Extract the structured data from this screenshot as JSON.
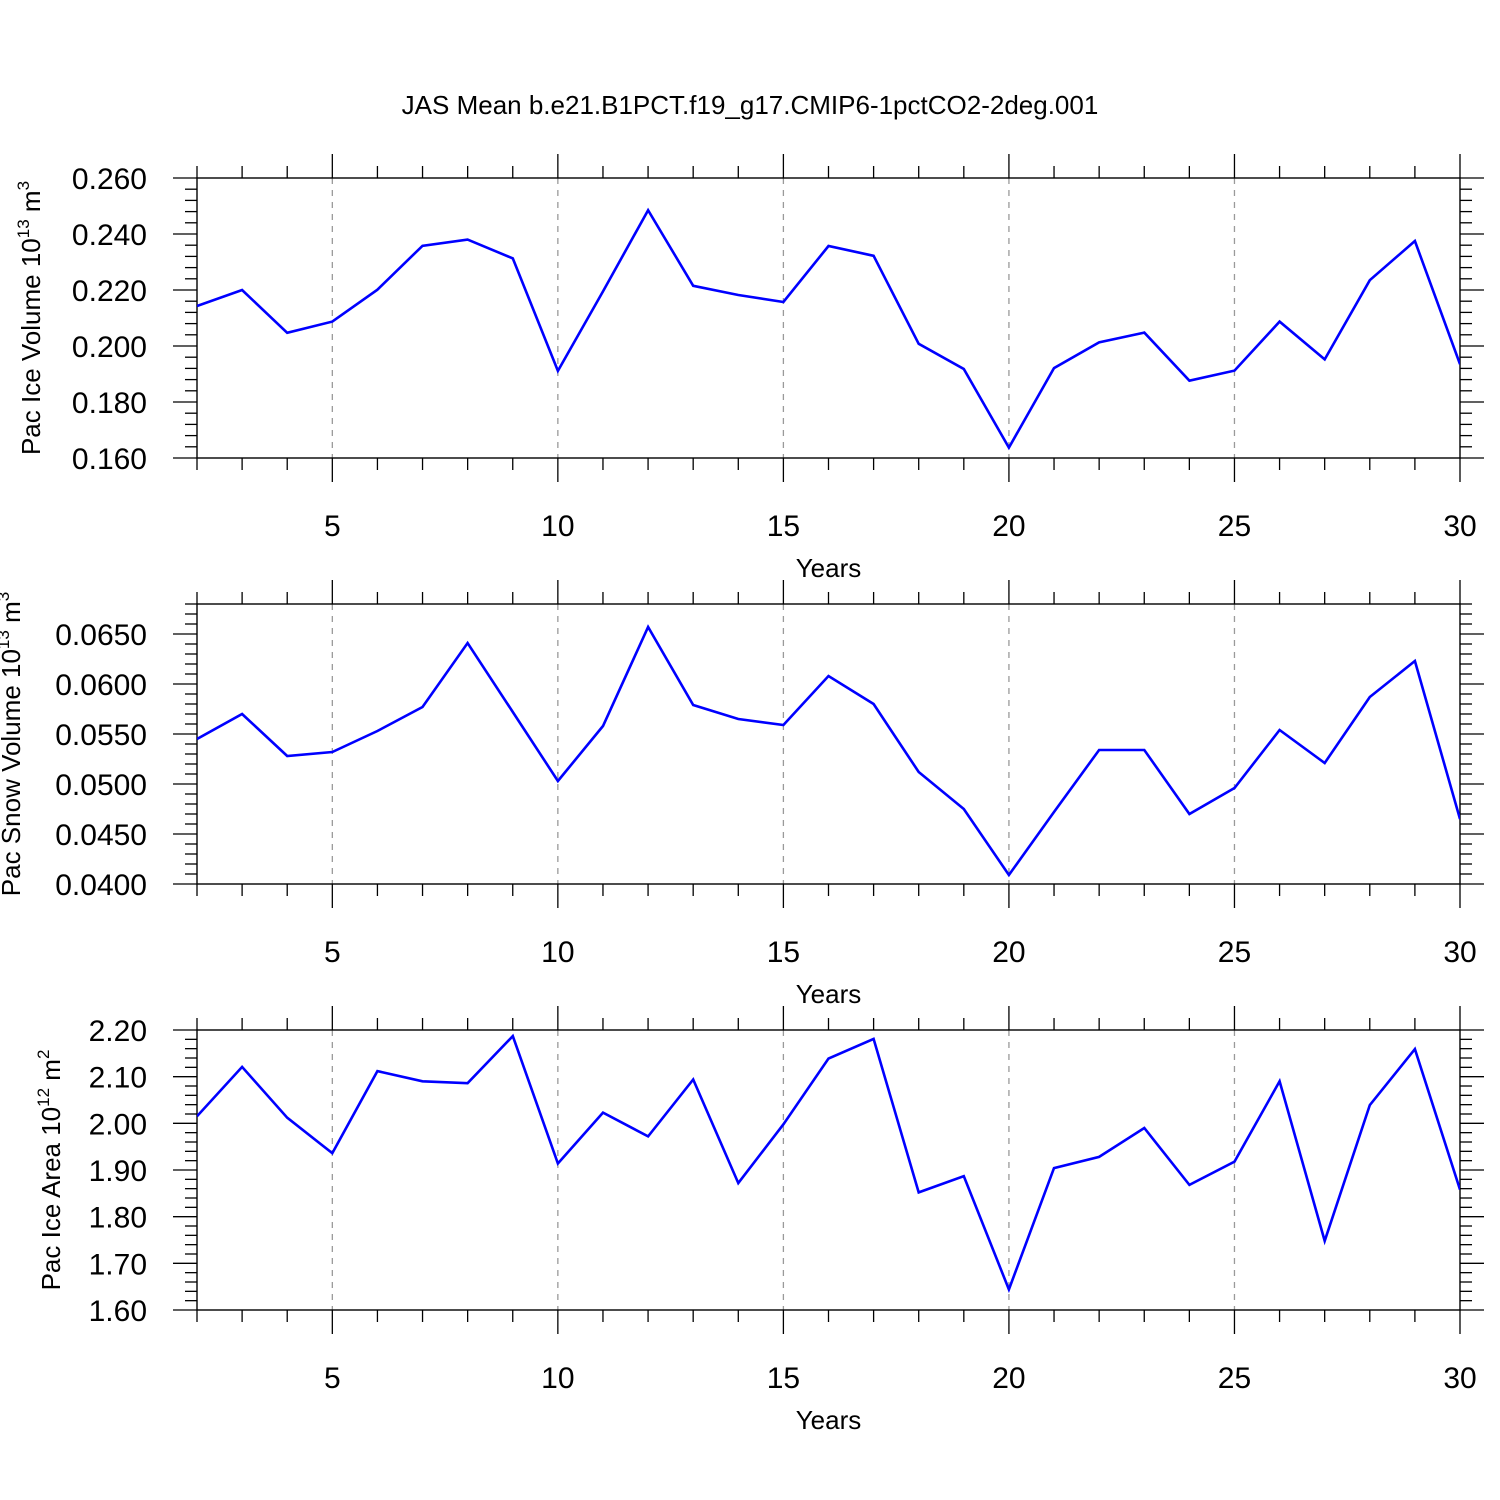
{
  "title": "JAS Mean b.e21.B1PCT.f19_g17.CMIP6-1pctCO2-2deg.001",
  "colors": {
    "line": "#0000ff",
    "axes": "#000000",
    "grid": "#9a9a9a"
  },
  "chart_data": [
    {
      "type": "line",
      "ylabel": {
        "base": "Pac Ice Volume 10",
        "exp": "13",
        "unit": " m",
        "unit_exp": "3"
      },
      "xlabel": "Years",
      "xlim": [
        2,
        30
      ],
      "ylim": [
        0.16,
        0.26
      ],
      "x_ticks": [
        5,
        10,
        15,
        20,
        25,
        30
      ],
      "y_ticks": [
        "0.160",
        "0.180",
        "0.200",
        "0.220",
        "0.240",
        "0.260"
      ],
      "grid": "vertical dashed at major x ticks",
      "x": [
        2,
        3,
        4,
        5,
        6,
        7,
        8,
        9,
        10,
        11,
        12,
        13,
        14,
        15,
        16,
        17,
        18,
        19,
        20,
        21,
        22,
        23,
        24,
        25,
        26,
        27,
        28,
        29,
        30
      ],
      "values": [
        0.2143,
        0.22,
        0.2047,
        0.2087,
        0.2201,
        0.2358,
        0.238,
        0.2313,
        0.1911,
        0.2195,
        0.2485,
        0.2215,
        0.2182,
        0.2157,
        0.2357,
        0.2322,
        0.2008,
        0.1918,
        0.1637,
        0.1921,
        0.2013,
        0.2048,
        0.1876,
        0.1912,
        0.2087,
        0.1952,
        0.2235,
        0.2375,
        0.1935
      ]
    },
    {
      "type": "line",
      "ylabel": {
        "base": "Pac Snow Volume 10",
        "exp": "13",
        "unit": " m",
        "unit_exp": "3"
      },
      "xlabel": "Years",
      "xlim": [
        2,
        30
      ],
      "ylim": [
        0.04,
        0.068
      ],
      "x_ticks": [
        5,
        10,
        15,
        20,
        25,
        30
      ],
      "y_ticks": [
        "0.0400",
        "0.0450",
        "0.0500",
        "0.0550",
        "0.0600",
        "0.0650"
      ],
      "grid": "vertical dashed at major x ticks",
      "x": [
        2,
        3,
        4,
        5,
        6,
        7,
        8,
        9,
        10,
        11,
        12,
        13,
        14,
        15,
        16,
        17,
        18,
        19,
        20,
        21,
        22,
        23,
        24,
        25,
        26,
        27,
        28,
        29,
        30
      ],
      "values": [
        0.0545,
        0.057,
        0.0528,
        0.0532,
        0.0553,
        0.0577,
        0.0641,
        0.0572,
        0.0503,
        0.0558,
        0.0657,
        0.0579,
        0.0565,
        0.0559,
        0.0608,
        0.058,
        0.0512,
        0.0475,
        0.0409,
        0.0472,
        0.0534,
        0.0534,
        0.047,
        0.0496,
        0.0554,
        0.0521,
        0.0587,
        0.0623,
        0.0465
      ]
    },
    {
      "type": "line",
      "ylabel": {
        "base": "Pac Ice Area 10",
        "exp": "12",
        "unit": " m",
        "unit_exp": "2"
      },
      "xlabel": "Years",
      "xlim": [
        2,
        30
      ],
      "ylim": [
        1.6,
        2.2
      ],
      "x_ticks": [
        5,
        10,
        15,
        20,
        25,
        30
      ],
      "y_ticks": [
        "1.60",
        "1.70",
        "1.80",
        "1.90",
        "2.00",
        "2.10",
        "2.20"
      ],
      "grid": "vertical dashed at major x ticks",
      "x": [
        2,
        3,
        4,
        5,
        6,
        7,
        8,
        9,
        10,
        11,
        12,
        13,
        14,
        15,
        16,
        17,
        18,
        19,
        20,
        21,
        22,
        23,
        24,
        25,
        26,
        27,
        28,
        29,
        30
      ],
      "values": [
        2.015,
        2.121,
        2.012,
        1.936,
        2.112,
        2.09,
        2.086,
        2.187,
        1.914,
        2.023,
        1.972,
        2.094,
        1.872,
        1.998,
        2.139,
        2.181,
        1.852,
        1.887,
        1.644,
        1.904,
        1.928,
        1.99,
        1.868,
        1.918,
        2.09,
        1.748,
        2.039,
        2.159,
        1.858
      ]
    }
  ]
}
